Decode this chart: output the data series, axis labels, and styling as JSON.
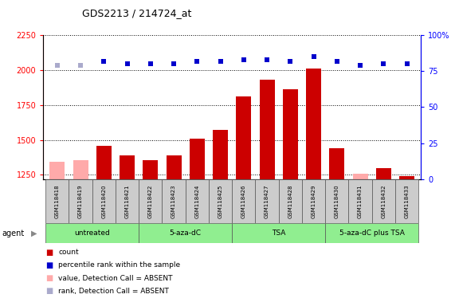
{
  "title": "GDS2213 / 214724_at",
  "samples": [
    "GSM118418",
    "GSM118419",
    "GSM118420",
    "GSM118421",
    "GSM118422",
    "GSM118423",
    "GSM118424",
    "GSM118425",
    "GSM118426",
    "GSM118427",
    "GSM118428",
    "GSM118429",
    "GSM118430",
    "GSM118431",
    "GSM118432",
    "GSM118433"
  ],
  "counts": [
    1345,
    1355,
    1455,
    1390,
    1355,
    1390,
    1510,
    1570,
    1810,
    1930,
    1860,
    2010,
    1440,
    1260,
    1300,
    1240
  ],
  "absent_count": [
    true,
    true,
    false,
    false,
    false,
    false,
    false,
    false,
    false,
    false,
    false,
    false,
    false,
    true,
    false,
    false
  ],
  "percentile": [
    79,
    79,
    82,
    80,
    80,
    80,
    82,
    82,
    83,
    83,
    82,
    85,
    82,
    79,
    80,
    80
  ],
  "absent_rank": [
    true,
    true,
    false,
    false,
    false,
    false,
    false,
    false,
    false,
    false,
    false,
    false,
    false,
    false,
    false,
    false
  ],
  "groups": [
    {
      "label": "untreated",
      "start": 0,
      "end": 4
    },
    {
      "label": "5-aza-dC",
      "start": 4,
      "end": 8
    },
    {
      "label": "TSA",
      "start": 8,
      "end": 12
    },
    {
      "label": "5-aza-dC plus TSA",
      "start": 12,
      "end": 16
    }
  ],
  "ylim_left": [
    1220,
    2250
  ],
  "ylim_right": [
    0,
    100
  ],
  "yticks_left": [
    1250,
    1500,
    1750,
    2000,
    2250
  ],
  "yticks_right": [
    0,
    25,
    50,
    75,
    100
  ],
  "bar_color_normal": "#cc0000",
  "bar_color_absent": "#ffaaaa",
  "dot_color_normal": "#0000cc",
  "dot_color_absent": "#aaaacc",
  "group_color": "#90ee90",
  "agent_label": "agent",
  "legend_items": [
    {
      "color": "#cc0000",
      "marker": "s",
      "label": "count"
    },
    {
      "color": "#0000cc",
      "marker": "s",
      "label": "percentile rank within the sample"
    },
    {
      "color": "#ffaaaa",
      "marker": "s",
      "label": "value, Detection Call = ABSENT"
    },
    {
      "color": "#aaaacc",
      "marker": "s",
      "label": "rank, Detection Call = ABSENT"
    }
  ]
}
